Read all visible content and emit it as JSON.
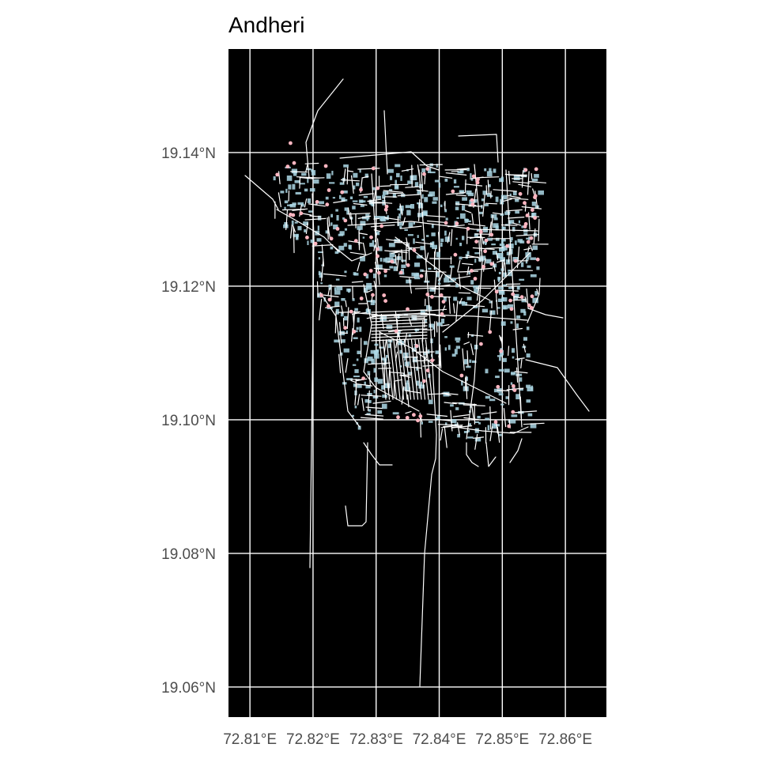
{
  "title": "Andheri",
  "map": {
    "background_color": "#000000",
    "grid_color": "#ffffff",
    "road_color": "#ffffff",
    "building_color": "#add8e6",
    "poi_color": "#ffb6c1",
    "longitude_range": [
      72.8066,
      72.8665
    ],
    "latitude_range": [
      19.0555,
      19.1555
    ],
    "x_ticks": [
      {
        "value": 72.81,
        "label": "72.81°E"
      },
      {
        "value": 72.82,
        "label": "72.82°E"
      },
      {
        "value": 72.83,
        "label": "72.83°E"
      },
      {
        "value": 72.84,
        "label": "72.84°E"
      },
      {
        "value": 72.85,
        "label": "72.85°E"
      },
      {
        "value": 72.86,
        "label": "72.86°E"
      }
    ],
    "y_ticks": [
      {
        "value": 19.14,
        "label": "19.14°N"
      },
      {
        "value": 19.12,
        "label": "19.12°N"
      },
      {
        "value": 19.1,
        "label": "19.10°N"
      },
      {
        "value": 19.08,
        "label": "19.08°N"
      },
      {
        "value": 19.06,
        "label": "19.06°N"
      }
    ]
  }
}
